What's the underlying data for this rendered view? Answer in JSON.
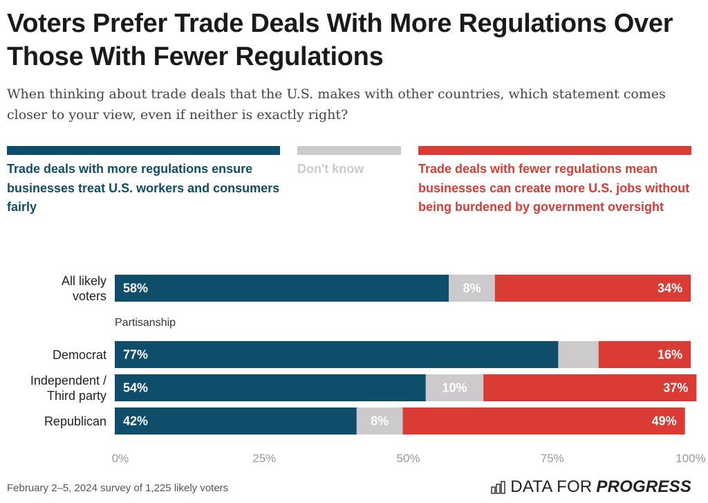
{
  "header": {
    "title": "Voters Prefer Trade Deals With More Regulations Over Those With Fewer Regulations",
    "subtitle": "When thinking about trade deals that the U.S. makes with other countries, which statement comes closer to your view, even if neither is exactly right?"
  },
  "legend": [
    {
      "label": "Trade deals with more regulations ensure businesses treat U.S. workers and consumers fairly",
      "color": "#0f4e6b"
    },
    {
      "label": "Don't know",
      "color": "#cdcacd"
    },
    {
      "label": "Trade deals with fewer regulations mean businesses can create more U.S. jobs without being burdened by government oversight",
      "color": "#db3b35"
    }
  ],
  "group_label": "Partisanship",
  "footer": {
    "note": "February 2–5, 2024 survey of 1,225 likely voters",
    "logo_regular": "DATA FOR",
    "logo_bold": "PROGRESS"
  },
  "chart_data": {
    "type": "bar",
    "orientation": "horizontal-stacked-100",
    "title": "Voters Prefer Trade Deals With More Regulations Over Those With Fewer Regulations",
    "categories": [
      "All likely voters",
      "Democrat",
      "Independent / Third party",
      "Republican"
    ],
    "category_lines": [
      [
        "All likely",
        "voters"
      ],
      [
        "Democrat"
      ],
      [
        "Independent /",
        "Third party"
      ],
      [
        "Republican"
      ]
    ],
    "series": [
      {
        "name": "Trade deals with more regulations ensure businesses treat U.S. workers and consumers fairly",
        "values": [
          58,
          77,
          54,
          42
        ],
        "labels": [
          "58%",
          "77%",
          "54%",
          "42%"
        ],
        "color": "#0f4e6b"
      },
      {
        "name": "Don't know",
        "values": [
          8,
          7,
          10,
          8
        ],
        "labels": [
          "8%",
          "",
          "10%",
          "8%"
        ],
        "color": "#cdcacd"
      },
      {
        "name": "Trade deals with fewer regulations mean businesses can create more U.S. jobs without being burdened by government oversight",
        "values": [
          34,
          16,
          37,
          49
        ],
        "labels": [
          "34%",
          "16%",
          "37%",
          "49%"
        ],
        "color": "#db3b35"
      }
    ],
    "xlim": [
      0,
      100
    ],
    "xticks": [
      "0%",
      "25%",
      "50%",
      "75%",
      "100%"
    ],
    "xlabel": "",
    "ylabel": "",
    "grid": false,
    "legend_position": "top"
  }
}
